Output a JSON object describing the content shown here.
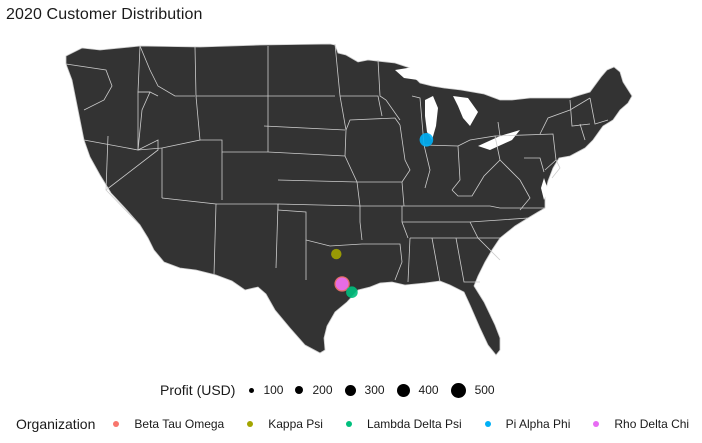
{
  "title": "2020 Customer Distribution",
  "map": {
    "region": "Contiguous United States",
    "land_color": "#333333",
    "border_color": "#cccccc"
  },
  "chart_data": {
    "type": "scatter",
    "title": "2020 Customer Distribution",
    "points": [
      {
        "organization": "Pi Alpha Phi",
        "location": "Chicago area, IL",
        "lat": 41.85,
        "lon": -87.9,
        "profit": 300
      },
      {
        "organization": "Kappa Psi",
        "location": "Dallas-Fort Worth area, TX",
        "lat": 32.85,
        "lon": -97.1,
        "profit": 120
      },
      {
        "organization": "Beta Tau Omega",
        "location": "Central Texas",
        "lat": 30.5,
        "lon": -96.5,
        "profit": 450
      },
      {
        "organization": "Rho Delta Chi",
        "location": "Central Texas",
        "lat": 30.5,
        "lon": -96.5,
        "profit": 250
      },
      {
        "organization": "Lambda Delta Psi",
        "location": "Houston area, TX",
        "lat": 29.85,
        "lon": -95.5,
        "profit": 180
      }
    ]
  },
  "size_legend": {
    "title": "Profit (USD)",
    "items": [
      {
        "label": "100",
        "value": 100
      },
      {
        "label": "200",
        "value": 200
      },
      {
        "label": "300",
        "value": 300
      },
      {
        "label": "400",
        "value": 400
      },
      {
        "label": "500",
        "value": 500
      }
    ]
  },
  "color_legend": {
    "title": "Organization",
    "items": [
      {
        "label": "Beta Tau Omega",
        "color": "#f8766d"
      },
      {
        "label": "Kappa Psi",
        "color": "#a3a500"
      },
      {
        "label": "Lambda Delta Psi",
        "color": "#00bf7d"
      },
      {
        "label": "Pi Alpha Phi",
        "color": "#00b0f6"
      },
      {
        "label": "Rho Delta Chi",
        "color": "#e76bf3"
      }
    ]
  }
}
